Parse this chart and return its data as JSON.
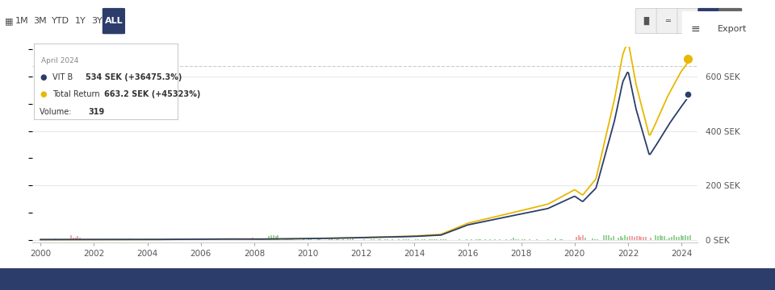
{
  "bg_color": "#ffffff",
  "plot_bg": "#ffffff",
  "grid_color": "#e8e8e8",
  "x_start_year": 1999.7,
  "x_end_year": 2024.6,
  "y_min": -8,
  "y_max": 710,
  "y_ticks": [
    0,
    200,
    400,
    600
  ],
  "y_tick_labels": [
    "0 SEK",
    "200 SEK",
    "400 SEK",
    "600 SEK"
  ],
  "x_ticks": [
    2000,
    2002,
    2004,
    2006,
    2008,
    2010,
    2012,
    2014,
    2016,
    2018,
    2020,
    2022,
    2024
  ],
  "nav_bar_color": "#2d3d6b",
  "nav_buttons": [
    "1M",
    "3M",
    "YTD",
    "1Y",
    "3Y",
    "ALL"
  ],
  "nav_active": "ALL",
  "nav_active_bg": "#2d3d6b",
  "line1_color": "#2d3d6b",
  "line2_color": "#e8b800",
  "dashed_line_y": 638,
  "marker_x": 2024.25,
  "marker_y1": 534,
  "marker_y2": 663.2,
  "tooltip_date": "April 2024",
  "tooltip_line1_label": "VIT B ",
  "tooltip_line1_value": "534 SEK (+36475.3%)",
  "tooltip_line2_label": "Total Return ",
  "tooltip_line2_value": "663.2 SEK (+45323%)",
  "tooltip_volume_label": "Volume: ",
  "tooltip_volume_value": "319",
  "export_text": "Export"
}
